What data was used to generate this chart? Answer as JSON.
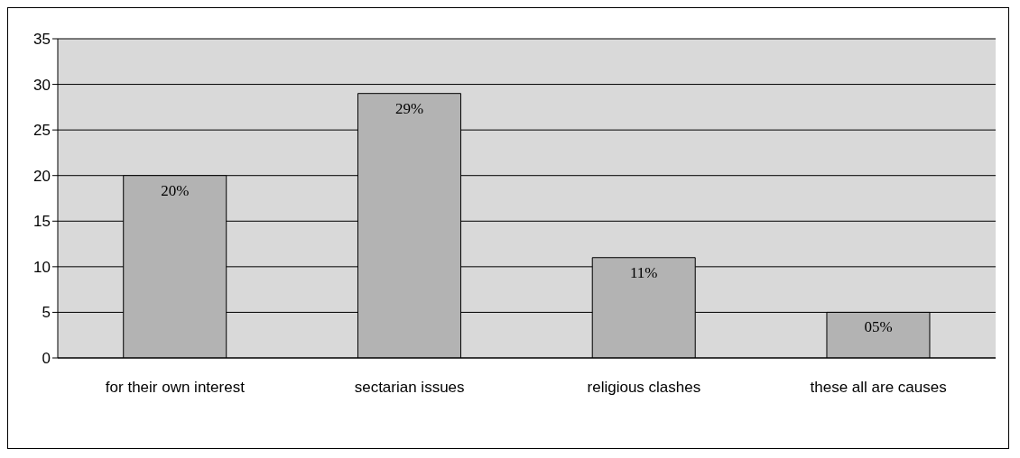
{
  "chart_data": {
    "type": "bar",
    "categories": [
      "for their own interest",
      "sectarian issues",
      "religious clashes",
      "these all are causes"
    ],
    "values": [
      20,
      29,
      11,
      5
    ],
    "value_labels": [
      "20%",
      "29%",
      "11%",
      "05%"
    ],
    "color": "#b3b3b3",
    "ylim": [
      0,
      35
    ],
    "yticks": [
      0,
      5,
      10,
      15,
      20,
      25,
      30,
      35
    ],
    "grid": "y"
  }
}
